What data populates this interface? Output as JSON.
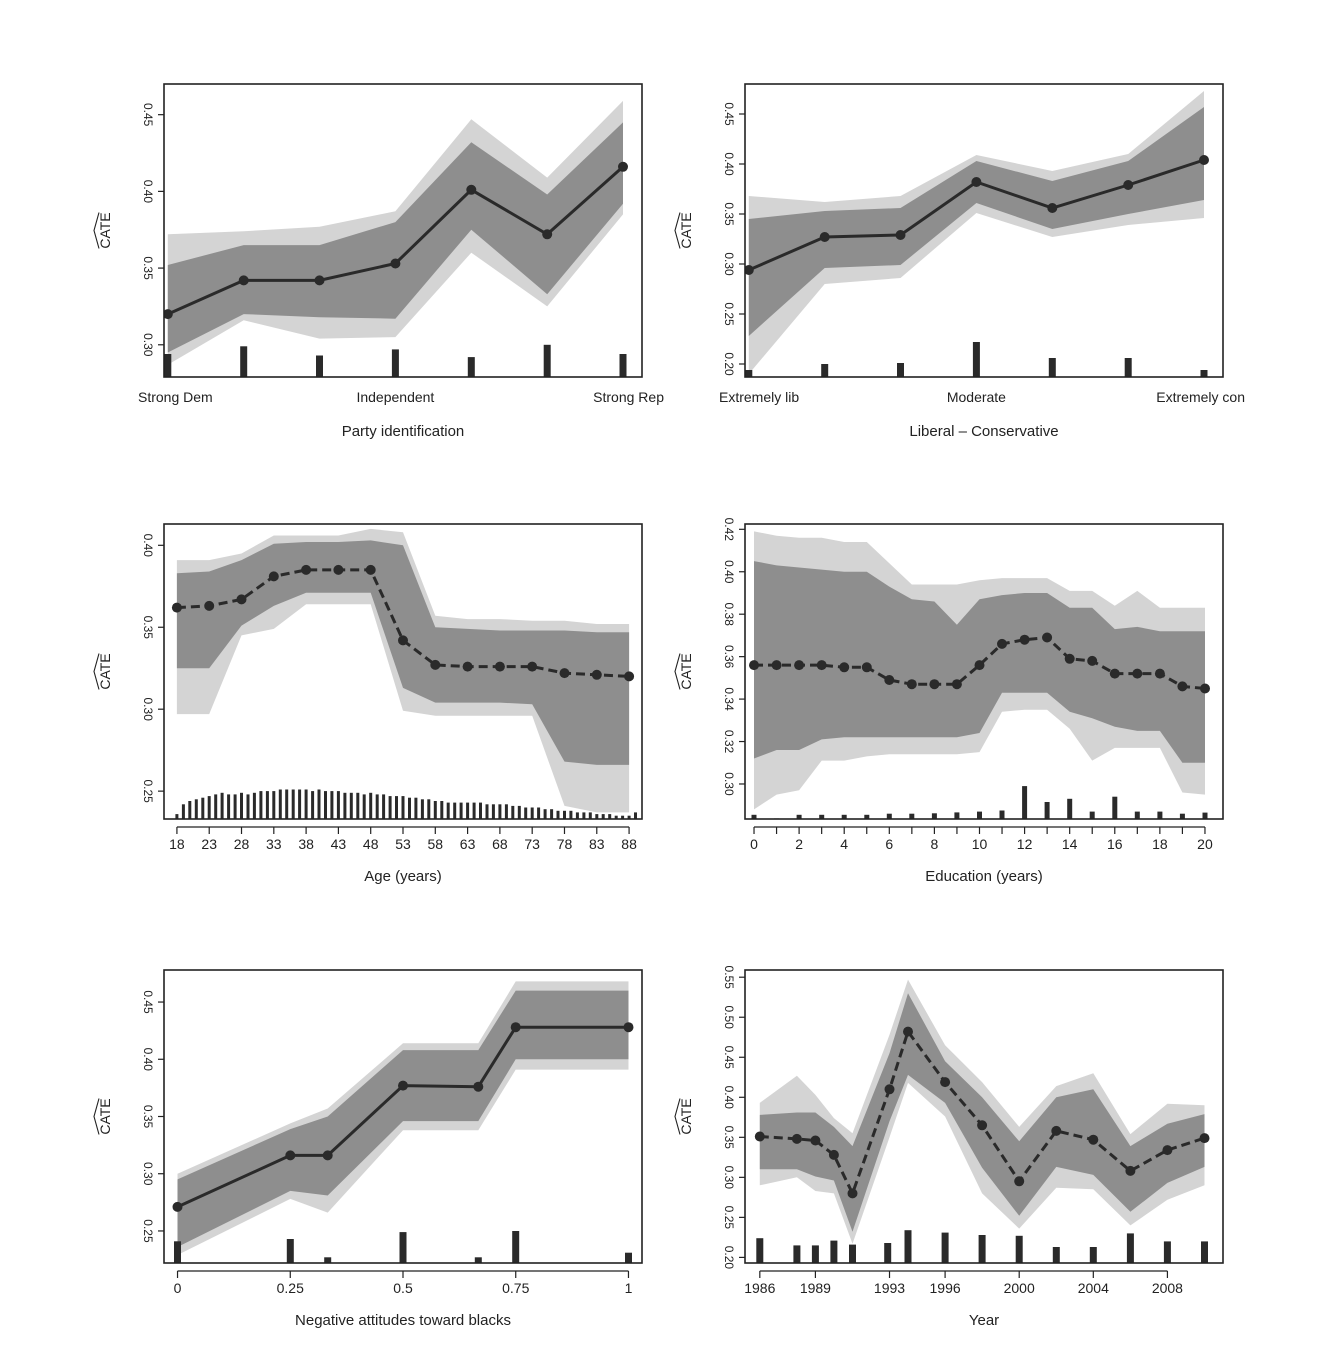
{
  "colors": {
    "outer_band": "#d4d4d4",
    "inner_band": "#8e8e8e",
    "line": "#2a2a2a",
    "point": "#2a2a2a",
    "hist_bar": "#2a2a2a"
  },
  "chart_data": [
    {
      "id": "party",
      "type": "line",
      "title": "",
      "xlabel": "Party identification",
      "ylabel": "CATE",
      "ylabel_hat": true,
      "line_style": "solid",
      "x": [
        1,
        2,
        3,
        4,
        5,
        6,
        7
      ],
      "xlim": [
        0.95,
        7.25
      ],
      "ylim": [
        0.279,
        0.47
      ],
      "hist_base": 0.279,
      "x_ticks": [
        {
          "value": 1,
          "label": "Strong Dem"
        },
        {
          "value": 4,
          "label": "Independent"
        },
        {
          "value": 7,
          "label": "Strong Rep"
        }
      ],
      "x_tick_marks": false,
      "y_ticks": [
        {
          "value": 0.3,
          "label": "0.30"
        },
        {
          "value": 0.35,
          "label": "0.35"
        },
        {
          "value": 0.4,
          "label": "0.40"
        },
        {
          "value": 0.45,
          "label": "0.45"
        }
      ],
      "estimate": [
        0.32,
        0.342,
        0.342,
        0.353,
        0.401,
        0.372,
        0.416
      ],
      "ci_outer": {
        "lower": [
          0.287,
          0.316,
          0.304,
          0.305,
          0.36,
          0.325,
          0.385
        ],
        "upper": [
          0.372,
          0.374,
          0.377,
          0.387,
          0.447,
          0.409,
          0.459
        ]
      },
      "ci_inner": {
        "lower": [
          0.295,
          0.32,
          0.318,
          0.317,
          0.375,
          0.333,
          0.392
        ],
        "upper": [
          0.352,
          0.365,
          0.365,
          0.38,
          0.432,
          0.398,
          0.445
        ]
      },
      "histogram": [
        0.294,
        0.299,
        0.293,
        0.297,
        0.292,
        0.3,
        0.294
      ]
    },
    {
      "id": "ideology",
      "type": "line",
      "title": "",
      "xlabel": "Liberal – Conservative",
      "ylabel": "CATE",
      "ylabel_hat": true,
      "line_style": "solid",
      "x": [
        1,
        2,
        3,
        4,
        5,
        6,
        7
      ],
      "xlim": [
        0.95,
        7.25
      ],
      "ylim": [
        0.187,
        0.48
      ],
      "hist_base": 0.187,
      "x_ticks": [
        {
          "value": 1,
          "label": "Extremely lib"
        },
        {
          "value": 4,
          "label": "Moderate"
        },
        {
          "value": 7,
          "label": "Extremely con"
        }
      ],
      "x_tick_marks": false,
      "y_ticks": [
        {
          "value": 0.2,
          "label": "0.20"
        },
        {
          "value": 0.25,
          "label": "0.25"
        },
        {
          "value": 0.3,
          "label": "0.30"
        },
        {
          "value": 0.35,
          "label": "0.35"
        },
        {
          "value": 0.4,
          "label": "0.40"
        },
        {
          "value": 0.45,
          "label": "0.45"
        }
      ],
      "estimate": [
        0.294,
        0.327,
        0.329,
        0.382,
        0.356,
        0.379,
        0.404
      ],
      "ci_outer": {
        "lower": [
          0.19,
          0.28,
          0.286,
          0.351,
          0.327,
          0.339,
          0.346
        ],
        "upper": [
          0.368,
          0.362,
          0.368,
          0.409,
          0.393,
          0.41,
          0.473
        ]
      },
      "ci_inner": {
        "lower": [
          0.228,
          0.296,
          0.299,
          0.361,
          0.335,
          0.35,
          0.364
        ],
        "upper": [
          0.345,
          0.353,
          0.356,
          0.403,
          0.383,
          0.403,
          0.457
        ]
      },
      "histogram": [
        0.194,
        0.2,
        0.201,
        0.222,
        0.206,
        0.206,
        0.194
      ]
    },
    {
      "id": "age",
      "type": "line",
      "title": "",
      "xlabel": "Age (years)",
      "ylabel": "CATE",
      "ylabel_hat": true,
      "line_style": "dashed",
      "x": [
        18,
        23,
        28,
        33,
        38,
        43,
        48,
        53,
        58,
        63,
        68,
        73,
        78,
        83,
        88
      ],
      "xlim": [
        16,
        90
      ],
      "ylim": [
        0.233,
        0.413
      ],
      "hist_base": 0.233,
      "x_ticks": [
        {
          "value": 18,
          "label": "18"
        },
        {
          "value": 23,
          "label": "23"
        },
        {
          "value": 28,
          "label": "28"
        },
        {
          "value": 33,
          "label": "33"
        },
        {
          "value": 38,
          "label": "38"
        },
        {
          "value": 43,
          "label": "43"
        },
        {
          "value": 48,
          "label": "48"
        },
        {
          "value": 53,
          "label": "53"
        },
        {
          "value": 58,
          "label": "58"
        },
        {
          "value": 63,
          "label": "63"
        },
        {
          "value": 68,
          "label": "68"
        },
        {
          "value": 73,
          "label": "73"
        },
        {
          "value": 78,
          "label": "78"
        },
        {
          "value": 83,
          "label": "83"
        },
        {
          "value": 88,
          "label": "88"
        }
      ],
      "x_tick_marks": true,
      "y_ticks": [
        {
          "value": 0.25,
          "label": "0.25"
        },
        {
          "value": 0.3,
          "label": "0.30"
        },
        {
          "value": 0.35,
          "label": "0.35"
        },
        {
          "value": 0.4,
          "label": "0.40"
        }
      ],
      "estimate": [
        0.362,
        0.363,
        0.367,
        0.381,
        0.385,
        0.385,
        0.385,
        0.342,
        0.327,
        0.326,
        0.326,
        0.326,
        0.322,
        0.321,
        0.32
      ],
      "ci_outer": {
        "lower": [
          0.297,
          0.297,
          0.345,
          0.349,
          0.364,
          0.364,
          0.364,
          0.299,
          0.296,
          0.296,
          0.296,
          0.296,
          0.241,
          0.237,
          0.237
        ],
        "upper": [
          0.391,
          0.391,
          0.395,
          0.406,
          0.406,
          0.406,
          0.41,
          0.408,
          0.357,
          0.355,
          0.355,
          0.354,
          0.354,
          0.352,
          0.352
        ]
      },
      "ci_inner": {
        "lower": [
          0.325,
          0.325,
          0.351,
          0.363,
          0.371,
          0.371,
          0.371,
          0.313,
          0.304,
          0.304,
          0.304,
          0.303,
          0.268,
          0.266,
          0.266
        ],
        "upper": [
          0.383,
          0.384,
          0.391,
          0.401,
          0.402,
          0.402,
          0.403,
          0.4,
          0.35,
          0.349,
          0.348,
          0.348,
          0.348,
          0.347,
          0.347
        ],
        "_note": "inner band"
      },
      "histogram_x": [
        18,
        19,
        20,
        21,
        22,
        23,
        24,
        25,
        26,
        27,
        28,
        29,
        30,
        31,
        32,
        33,
        34,
        35,
        36,
        37,
        38,
        39,
        40,
        41,
        42,
        43,
        44,
        45,
        46,
        47,
        48,
        49,
        50,
        51,
        52,
        53,
        54,
        55,
        56,
        57,
        58,
        59,
        60,
        61,
        62,
        63,
        64,
        65,
        66,
        67,
        68,
        69,
        70,
        71,
        72,
        73,
        74,
        75,
        76,
        77,
        78,
        79,
        80,
        81,
        82,
        83,
        84,
        85,
        86,
        87,
        88,
        89
      ],
      "histogram": [
        0.236,
        0.242,
        0.244,
        0.245,
        0.246,
        0.247,
        0.248,
        0.249,
        0.248,
        0.248,
        0.249,
        0.248,
        0.249,
        0.25,
        0.25,
        0.25,
        0.251,
        0.251,
        0.251,
        0.251,
        0.251,
        0.25,
        0.251,
        0.25,
        0.25,
        0.25,
        0.249,
        0.249,
        0.249,
        0.248,
        0.249,
        0.248,
        0.248,
        0.247,
        0.247,
        0.247,
        0.246,
        0.246,
        0.245,
        0.245,
        0.244,
        0.244,
        0.243,
        0.243,
        0.243,
        0.243,
        0.243,
        0.243,
        0.242,
        0.242,
        0.242,
        0.242,
        0.241,
        0.241,
        0.24,
        0.24,
        0.24,
        0.239,
        0.239,
        0.238,
        0.238,
        0.238,
        0.237,
        0.237,
        0.237,
        0.236,
        0.236,
        0.236,
        0.235,
        0.235,
        0.235,
        0.237
      ]
    },
    {
      "id": "education",
      "type": "line",
      "title": "",
      "xlabel": "Education (years)",
      "ylabel": "CATE",
      "ylabel_hat": true,
      "line_style": "dashed",
      "x": [
        0,
        1,
        2,
        3,
        4,
        5,
        6,
        7,
        8,
        9,
        10,
        11,
        12,
        13,
        14,
        15,
        16,
        17,
        18,
        19,
        20
      ],
      "xlim": [
        -0.4,
        20.8
      ],
      "ylim": [
        0.2835,
        0.4225
      ],
      "hist_base": 0.2835,
      "x_ticks": [
        {
          "value": 0,
          "label": "0"
        },
        {
          "value": 2,
          "label": "2"
        },
        {
          "value": 4,
          "label": "4"
        },
        {
          "value": 6,
          "label": "6"
        },
        {
          "value": 8,
          "label": "8"
        },
        {
          "value": 10,
          "label": "10"
        },
        {
          "value": 12,
          "label": "12"
        },
        {
          "value": 14,
          "label": "14"
        },
        {
          "value": 16,
          "label": "16"
        },
        {
          "value": 18,
          "label": "18"
        },
        {
          "value": 20,
          "label": "20"
        }
      ],
      "x_minor_ticks": [
        1,
        3,
        5,
        7,
        9,
        11,
        13,
        15,
        17,
        19
      ],
      "x_tick_marks": true,
      "y_ticks": [
        {
          "value": 0.3,
          "label": "0.30"
        },
        {
          "value": 0.32,
          "label": "0.32"
        },
        {
          "value": 0.34,
          "label": "0.34"
        },
        {
          "value": 0.36,
          "label": "0.36"
        },
        {
          "value": 0.38,
          "label": "0.38"
        },
        {
          "value": 0.4,
          "label": "0.40"
        },
        {
          "value": 0.42,
          "label": "0.42"
        }
      ],
      "estimate": [
        0.356,
        0.356,
        0.356,
        0.356,
        0.355,
        0.355,
        0.349,
        0.347,
        0.347,
        0.347,
        0.356,
        0.366,
        0.368,
        0.369,
        0.359,
        0.358,
        0.352,
        0.352,
        0.352,
        0.346,
        0.345
      ],
      "ci_outer": {
        "lower": [
          0.288,
          0.295,
          0.297,
          0.311,
          0.311,
          0.313,
          0.314,
          0.314,
          0.314,
          0.314,
          0.315,
          0.334,
          0.335,
          0.335,
          0.326,
          0.311,
          0.317,
          0.317,
          0.317,
          0.296,
          0.295
        ],
        "upper": [
          0.419,
          0.417,
          0.416,
          0.416,
          0.414,
          0.414,
          0.404,
          0.394,
          0.394,
          0.394,
          0.396,
          0.397,
          0.397,
          0.397,
          0.391,
          0.391,
          0.384,
          0.391,
          0.383,
          0.383,
          0.383
        ]
      },
      "ci_inner": {
        "lower": [
          0.312,
          0.316,
          0.316,
          0.321,
          0.322,
          0.322,
          0.322,
          0.322,
          0.322,
          0.322,
          0.324,
          0.343,
          0.343,
          0.343,
          0.334,
          0.331,
          0.327,
          0.325,
          0.325,
          0.31,
          0.31
        ],
        "upper": [
          0.405,
          0.403,
          0.402,
          0.401,
          0.4,
          0.4,
          0.393,
          0.387,
          0.386,
          0.375,
          0.387,
          0.389,
          0.39,
          0.39,
          0.383,
          0.383,
          0.373,
          0.374,
          0.372,
          0.372,
          0.372
        ]
      },
      "histogram": [
        0.2855,
        0.2838,
        0.2855,
        0.2855,
        0.2855,
        0.2855,
        0.286,
        0.286,
        0.2862,
        0.2866,
        0.287,
        0.2875,
        0.299,
        0.2915,
        0.293,
        0.287,
        0.294,
        0.287,
        0.287,
        0.286,
        0.2865
      ]
    },
    {
      "id": "attitudes",
      "type": "line",
      "title": "",
      "xlabel": "Negative attitudes toward blacks",
      "ylabel": "CATE",
      "ylabel_hat": true,
      "line_style": "solid",
      "x": [
        0,
        0.25,
        0.333,
        0.5,
        0.667,
        0.75,
        1
      ],
      "xlim": [
        -0.03,
        1.03
      ],
      "ylim": [
        0.222,
        0.478
      ],
      "hist_base": 0.222,
      "x_ticks": [
        {
          "value": 0,
          "label": "0"
        },
        {
          "value": 0.25,
          "label": "0.25"
        },
        {
          "value": 0.5,
          "label": "0.5"
        },
        {
          "value": 0.75,
          "label": "0.75"
        },
        {
          "value": 1,
          "label": "1"
        }
      ],
      "x_tick_marks": true,
      "y_ticks": [
        {
          "value": 0.25,
          "label": "0.25"
        },
        {
          "value": 0.3,
          "label": "0.30"
        },
        {
          "value": 0.35,
          "label": "0.35"
        },
        {
          "value": 0.4,
          "label": "0.40"
        },
        {
          "value": 0.45,
          "label": "0.45"
        }
      ],
      "estimate": [
        0.271,
        0.316,
        0.316,
        0.377,
        0.376,
        0.428,
        0.428
      ],
      "ci_outer": {
        "lower": [
          0.229,
          0.278,
          0.266,
          0.338,
          0.338,
          0.391,
          0.391
        ],
        "upper": [
          0.3,
          0.344,
          0.357,
          0.414,
          0.414,
          0.468,
          0.468
        ]
      },
      "ci_inner": {
        "lower": [
          0.236,
          0.285,
          0.281,
          0.346,
          0.346,
          0.4,
          0.4
        ],
        "upper": [
          0.295,
          0.339,
          0.35,
          0.408,
          0.408,
          0.46,
          0.46
        ]
      },
      "histogram_x": [
        0,
        0.25,
        0.333,
        0.5,
        0.667,
        0.75,
        1
      ],
      "histogram": [
        0.241,
        0.243,
        0.227,
        0.249,
        0.227,
        0.25,
        0.231
      ]
    },
    {
      "id": "year",
      "type": "line",
      "title": "",
      "xlabel": "Year",
      "ylabel": "CATE",
      "ylabel_hat": true,
      "line_style": "dashed",
      "x": [
        1986,
        1988,
        1989,
        1990,
        1991,
        1993,
        1994,
        1996,
        1998,
        2000,
        2002,
        2004,
        2006,
        2008,
        2010
      ],
      "xlim": [
        1985.2,
        2011.0
      ],
      "ylim": [
        0.193,
        0.559
      ],
      "hist_base": 0.193,
      "x_ticks": [
        {
          "value": 1986,
          "label": "1986"
        },
        {
          "value": 1989,
          "label": "1989"
        },
        {
          "value": 1993,
          "label": "1993"
        },
        {
          "value": 1996,
          "label": "1996"
        },
        {
          "value": 2000,
          "label": "2000"
        },
        {
          "value": 2004,
          "label": "2004"
        },
        {
          "value": 2008,
          "label": "2008"
        }
      ],
      "x_tick_marks": true,
      "y_ticks": [
        {
          "value": 0.2,
          "label": "0.20"
        },
        {
          "value": 0.25,
          "label": "0.25"
        },
        {
          "value": 0.3,
          "label": "0.30"
        },
        {
          "value": 0.35,
          "label": "0.35"
        },
        {
          "value": 0.4,
          "label": "0.40"
        },
        {
          "value": 0.45,
          "label": "0.45"
        },
        {
          "value": 0.5,
          "label": "0.50"
        },
        {
          "value": 0.55,
          "label": "0.55"
        }
      ],
      "estimate": [
        0.351,
        0.348,
        0.346,
        0.328,
        0.28,
        0.41,
        0.482,
        0.419,
        0.365,
        0.295,
        0.358,
        0.347,
        0.308,
        0.334,
        0.349
      ],
      "ci_outer": {
        "lower": [
          0.29,
          0.3,
          0.283,
          0.28,
          0.217,
          0.35,
          0.418,
          0.376,
          0.28,
          0.236,
          0.287,
          0.285,
          0.24,
          0.272,
          0.29
        ],
        "upper": [
          0.393,
          0.427,
          0.403,
          0.374,
          0.355,
          0.478,
          0.547,
          0.465,
          0.419,
          0.363,
          0.414,
          0.43,
          0.354,
          0.392,
          0.39
        ]
      },
      "ci_inner": {
        "lower": [
          0.31,
          0.31,
          0.301,
          0.296,
          0.232,
          0.37,
          0.428,
          0.393,
          0.312,
          0.252,
          0.313,
          0.303,
          0.257,
          0.293,
          0.313
        ],
        "upper": [
          0.378,
          0.381,
          0.381,
          0.363,
          0.339,
          0.455,
          0.53,
          0.445,
          0.4,
          0.345,
          0.4,
          0.41,
          0.339,
          0.367,
          0.379
        ]
      },
      "histogram_x": [
        1986,
        1988,
        1989,
        1990,
        1991,
        1992.9,
        1994,
        1996,
        1998,
        2000,
        2002,
        2004,
        2006,
        2008,
        2010
      ],
      "histogram": [
        0.224,
        0.215,
        0.215,
        0.221,
        0.216,
        0.218,
        0.234,
        0.231,
        0.228,
        0.227,
        0.213,
        0.213,
        0.23,
        0.22,
        0.22
      ]
    }
  ]
}
